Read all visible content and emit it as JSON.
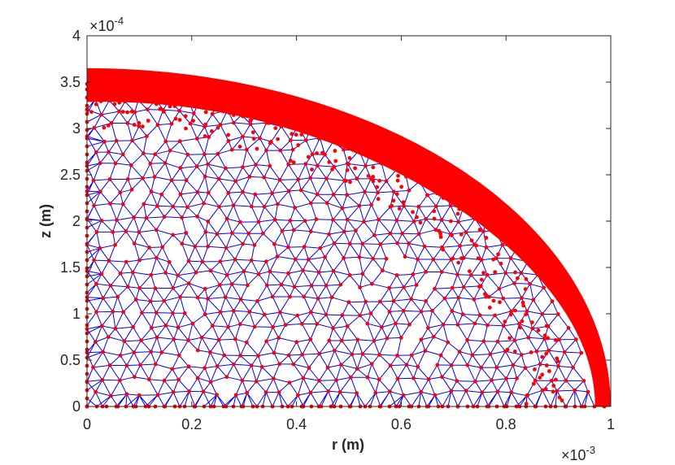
{
  "chart_data": {
    "type": "scatter",
    "title": "",
    "xlabel": "r (m)",
    "ylabel": "z (m)",
    "xlim": [
      0,
      0.001
    ],
    "ylim": [
      0,
      0.0004
    ],
    "x_multiplier_label": "×10",
    "x_multiplier_exponent": "-3",
    "y_multiplier_label": "×10",
    "y_multiplier_exponent": "-4",
    "x_ticks": [
      0,
      0.2,
      0.4,
      0.6,
      0.8,
      1
    ],
    "x_tick_labels": [
      "0",
      "0.2",
      "0.4",
      "0.6",
      "0.8",
      "1"
    ],
    "y_ticks": [
      0,
      0.5,
      1,
      1.5,
      2,
      2.5,
      3,
      3.5,
      4
    ],
    "y_tick_labels": [
      "0",
      "0.5",
      "1",
      "1.5",
      "2",
      "2.5",
      "3",
      "3.5",
      "4"
    ],
    "grid": false,
    "domain_boundary": {
      "shape": "quarter-ellipse",
      "r_max": 0.001,
      "z_max": 0.000365
    },
    "series": [
      {
        "marker": "dot",
        "color": "#ff0000",
        "description_kind": "mesh nodes"
      },
      {
        "marker": "line",
        "color": "#0000ff",
        "description_kind": "mesh edges"
      }
    ],
    "mesh_edge_color": "#0000ff",
    "mesh_node_color": "#ff0000"
  }
}
